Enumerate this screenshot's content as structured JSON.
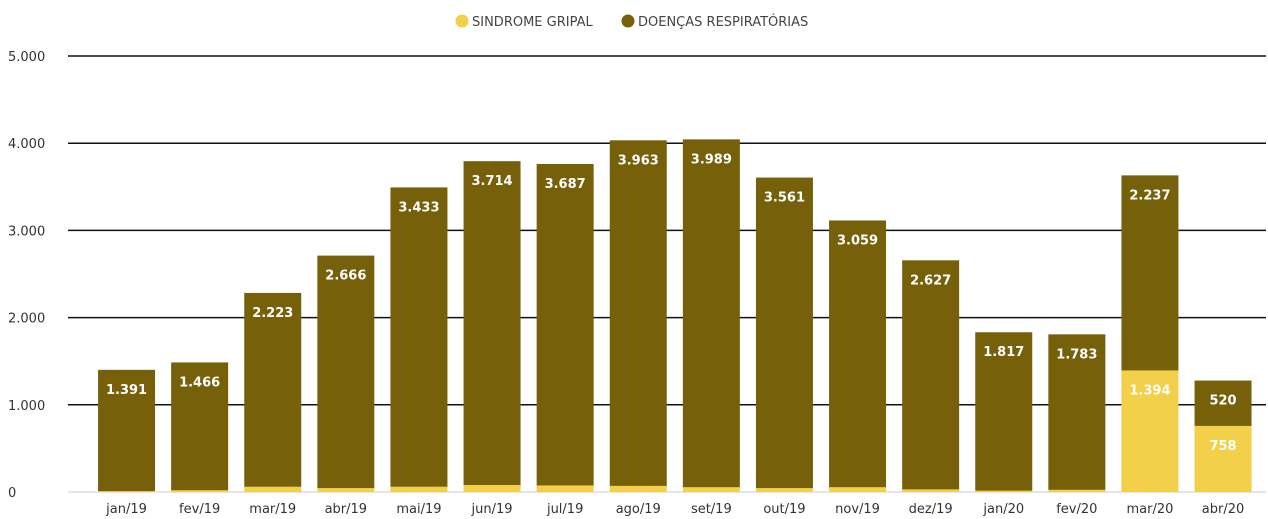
{
  "chart_data": {
    "type": "bar",
    "stacked": true,
    "categories": [
      "jan/19",
      "fev/19",
      "mar/19",
      "abr/19",
      "mai/19",
      "jun/19",
      "jul/19",
      "ago/19",
      "set/19",
      "out/19",
      "nov/19",
      "dez/19",
      "jan/20",
      "fev/20",
      "mar/20",
      "abr/20"
    ],
    "series": [
      {
        "name": "SINDROME GRIPAL",
        "color": "#F2D04A",
        "values": [
          10,
          20,
          60,
          45,
          60,
          80,
          75,
          70,
          55,
          45,
          55,
          30,
          15,
          25,
          1394,
          758
        ],
        "labels": [
          "",
          "",
          "",
          "",
          "",
          "",
          "",
          "",
          "",
          "",
          "",
          "",
          "",
          "",
          "1.394",
          "758"
        ]
      },
      {
        "name": "DOENÇAS RESPIRATÓRIAS",
        "color": "#76600A",
        "values": [
          1391,
          1466,
          2223,
          2666,
          3433,
          3714,
          3687,
          3963,
          3989,
          3561,
          3059,
          2627,
          1817,
          1783,
          2237,
          520
        ],
        "labels": [
          "1.391",
          "1.466",
          "2.223",
          "2.666",
          "3.433",
          "3.714",
          "3.687",
          "3.963",
          "3.989",
          "3.561",
          "3.059",
          "2.627",
          "1.817",
          "1.783",
          "2.237",
          "520"
        ]
      }
    ],
    "y_ticks": [
      0,
      1000,
      2000,
      3000,
      4000,
      5000
    ],
    "y_tick_labels": [
      "0",
      "1.000",
      "2.000",
      "3.000",
      "4.000",
      "5.000"
    ],
    "ylim": [
      0,
      5000
    ],
    "grid": true,
    "legend_position": "top-center"
  }
}
